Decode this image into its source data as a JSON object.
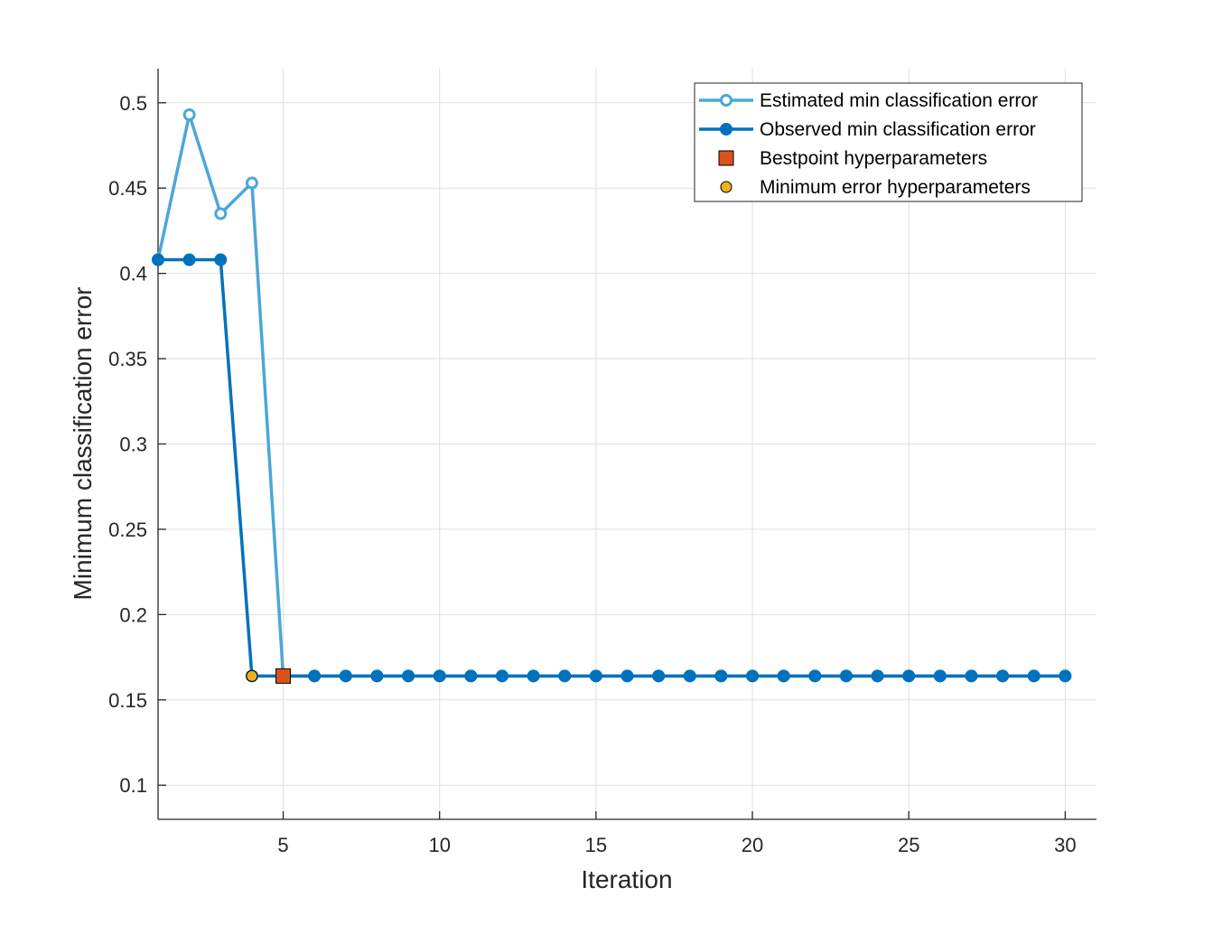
{
  "chart_data": {
    "type": "line",
    "xlabel": "Iteration",
    "ylabel": "Minimum classification error",
    "xlim": [
      1,
      31
    ],
    "ylim": [
      0.08,
      0.52
    ],
    "x_ticks": [
      5,
      10,
      15,
      20,
      25,
      30
    ],
    "x_tick_labels": [
      "5",
      "10",
      "15",
      "20",
      "25",
      "30"
    ],
    "y_ticks": [
      0.1,
      0.15,
      0.2,
      0.25,
      0.3,
      0.35,
      0.4,
      0.45,
      0.5
    ],
    "y_tick_labels": [
      "0.1",
      "0.15",
      "0.2",
      "0.25",
      "0.3",
      "0.35",
      "0.4",
      "0.45",
      "0.5"
    ],
    "grid": true,
    "legend_position": "top-right",
    "series": [
      {
        "name": "Estimated min classification error",
        "color": "#4da6d9",
        "marker": "open-circle",
        "x": [
          1,
          2,
          3,
          4,
          5,
          6,
          7,
          8,
          9,
          10,
          11,
          12,
          13,
          14,
          15,
          16,
          17,
          18,
          19,
          20,
          21,
          22,
          23,
          24,
          25,
          26,
          27,
          28,
          29,
          30
        ],
        "y": [
          0.408,
          0.493,
          0.435,
          0.453,
          0.164,
          0.164,
          0.164,
          0.164,
          0.164,
          0.164,
          0.164,
          0.164,
          0.164,
          0.164,
          0.164,
          0.164,
          0.164,
          0.164,
          0.164,
          0.164,
          0.164,
          0.164,
          0.164,
          0.164,
          0.164,
          0.164,
          0.164,
          0.164,
          0.164,
          0.164
        ]
      },
      {
        "name": "Observed min classification error",
        "color": "#0072bd",
        "marker": "filled-circle",
        "x": [
          1,
          2,
          3,
          4,
          5,
          6,
          7,
          8,
          9,
          10,
          11,
          12,
          13,
          14,
          15,
          16,
          17,
          18,
          19,
          20,
          21,
          22,
          23,
          24,
          25,
          26,
          27,
          28,
          29,
          30
        ],
        "y": [
          0.408,
          0.408,
          0.408,
          0.164,
          0.164,
          0.164,
          0.164,
          0.164,
          0.164,
          0.164,
          0.164,
          0.164,
          0.164,
          0.164,
          0.164,
          0.164,
          0.164,
          0.164,
          0.164,
          0.164,
          0.164,
          0.164,
          0.164,
          0.164,
          0.164,
          0.164,
          0.164,
          0.164,
          0.164,
          0.164
        ]
      }
    ],
    "points": [
      {
        "name": "Bestpoint hyperparameters",
        "color": "#d95319",
        "marker": "square",
        "x": 5,
        "y": 0.164
      },
      {
        "name": "Minimum error hyperparameters",
        "color": "#edb120",
        "marker": "circle",
        "x": 4,
        "y": 0.164
      }
    ]
  }
}
